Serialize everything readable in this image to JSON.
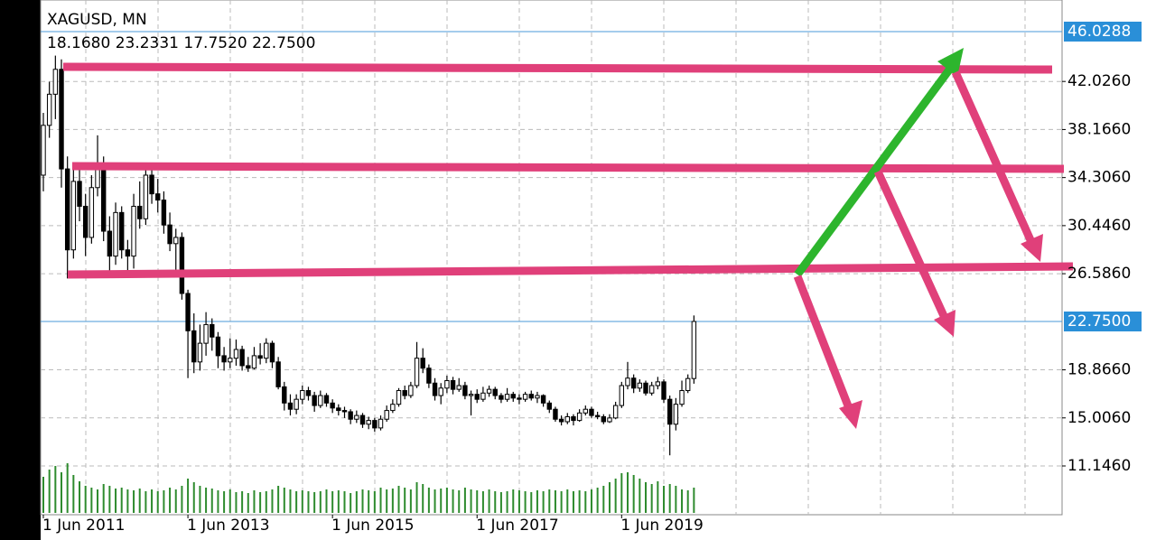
{
  "chart_data": {
    "type": "candlestick",
    "title": "XAGUSD, MN",
    "subtitle": "18.1680 23.2331 17.7520 22.7500",
    "ylim": [
      7.23,
      48.567
    ],
    "yticks": [
      {
        "value": 42.026,
        "label": "42.0260"
      },
      {
        "value": 38.166,
        "label": "38.1660"
      },
      {
        "value": 34.306,
        "label": "34.3060"
      },
      {
        "value": 30.446,
        "label": "30.4460"
      },
      {
        "value": 26.586,
        "label": "26.5860"
      },
      {
        "value": 18.866,
        "label": "18.8660"
      },
      {
        "value": 15.006,
        "label": "15.0060"
      },
      {
        "value": 11.146,
        "label": "11.1460"
      }
    ],
    "price_levels": [
      {
        "value": 46.0288,
        "label": "46.0288"
      },
      {
        "value": 22.75,
        "label": "22.7500"
      }
    ],
    "xticks": [
      {
        "value": 0,
        "label": "1 Jun 2011"
      },
      {
        "value": 24,
        "label": "1 Jun 2013"
      },
      {
        "value": 48,
        "label": "1 Jun 2015"
      },
      {
        "value": 72,
        "label": "1 Jun 2017"
      },
      {
        "value": 96,
        "label": "1 Jun 2019"
      }
    ],
    "grid": true,
    "volume_color": "#2e8b2e",
    "open": [
      34.5,
      38.5,
      41.0,
      43.0,
      35.0,
      28.5,
      34.0,
      32.0,
      29.5,
      33.5,
      35.0,
      30.0,
      28.0,
      31.5,
      28.5,
      28.0,
      32.0,
      31.0,
      34.5,
      33.0,
      32.5,
      30.5,
      29.0,
      29.5,
      25.0,
      22.0,
      19.5,
      21.0,
      22.5,
      21.5,
      20.0,
      19.5,
      19.8,
      20.5,
      19.2,
      19.0,
      20.0,
      19.8,
      21.0,
      19.5,
      17.5,
      16.2,
      15.7,
      16.5,
      17.2,
      16.8,
      16.0,
      16.8,
      16.2,
      15.8,
      15.6,
      15.5,
      14.9,
      15.2,
      14.5,
      14.8,
      14.2,
      14.9,
      15.6,
      16.1,
      17.2,
      16.8,
      17.6,
      19.8,
      19.0,
      17.8,
      16.8,
      17.4,
      18.0,
      17.3,
      17.6,
      16.8,
      16.9,
      16.5,
      17.0,
      17.3,
      16.8,
      16.5,
      16.9,
      16.6,
      16.5,
      16.9,
      16.6,
      16.8,
      16.2,
      15.7,
      14.9,
      14.7,
      15.1,
      14.8,
      15.4,
      15.7,
      15.2,
      15.1,
      14.7,
      15.0,
      16.0,
      17.6,
      18.2,
      17.4,
      17.8,
      17.0,
      17.6,
      17.9,
      16.5,
      14.5,
      16.1,
      17.2,
      18.168
    ],
    "high": [
      39.5,
      42.0,
      44.1,
      43.8,
      36.0,
      35.0,
      35.5,
      33.0,
      34.5,
      37.7,
      36.0,
      31.2,
      32.3,
      32.0,
      29.3,
      33.0,
      34.0,
      35.2,
      35.0,
      34.2,
      33.2,
      31.5,
      30.2,
      29.9,
      25.3,
      23.4,
      22.5,
      23.5,
      23.0,
      21.9,
      20.7,
      21.4,
      21.3,
      20.8,
      19.9,
      20.7,
      21.0,
      21.4,
      21.2,
      19.9,
      17.9,
      16.9,
      16.9,
      17.6,
      17.5,
      17.1,
      17.2,
      17.0,
      16.5,
      16.1,
      15.9,
      15.7,
      15.6,
      15.4,
      15.1,
      15.0,
      15.2,
      16.0,
      16.5,
      17.4,
      17.6,
      17.9,
      21.1,
      20.6,
      19.3,
      18.2,
      17.8,
      18.4,
      18.3,
      18.2,
      17.9,
      17.2,
      17.3,
      17.5,
      17.6,
      17.5,
      17.0,
      17.4,
      17.1,
      16.9,
      17.1,
      17.2,
      17.1,
      16.9,
      16.4,
      15.9,
      15.2,
      15.4,
      15.3,
      15.7,
      16.0,
      15.9,
      15.5,
      15.3,
      15.3,
      16.3,
      17.9,
      19.5,
      18.5,
      18.1,
      18.0,
      17.9,
      18.3,
      18.1,
      16.8,
      16.6,
      18.0,
      18.5,
      23.2331
    ],
    "low": [
      33.2,
      37.5,
      39.0,
      33.5,
      26.2,
      27.8,
      30.8,
      28.0,
      29.0,
      32.8,
      29.2,
      26.5,
      27.3,
      27.8,
      26.8,
      27.0,
      30.2,
      30.5,
      32.2,
      31.5,
      29.8,
      28.4,
      26.5,
      24.5,
      18.2,
      18.6,
      18.8,
      20.0,
      20.4,
      19.0,
      18.8,
      19.0,
      19.2,
      18.8,
      18.7,
      18.9,
      19.3,
      19.4,
      19.0,
      17.3,
      15.6,
      15.2,
      15.3,
      16.1,
      16.4,
      15.5,
      15.8,
      15.9,
      15.4,
      15.2,
      15.0,
      14.5,
      14.6,
      14.2,
      14.1,
      13.9,
      14.0,
      14.7,
      15.4,
      15.9,
      16.5,
      16.6,
      17.4,
      18.6,
      17.4,
      16.4,
      16.1,
      17.0,
      16.9,
      17.1,
      16.5,
      15.2,
      16.2,
      16.3,
      16.7,
      16.5,
      16.2,
      16.3,
      16.3,
      16.1,
      16.3,
      16.4,
      16.2,
      15.9,
      15.4,
      14.7,
      14.4,
      14.5,
      14.4,
      14.7,
      15.2,
      15.0,
      14.9,
      14.5,
      14.6,
      14.9,
      15.8,
      17.3,
      17.0,
      17.1,
      16.8,
      16.8,
      17.3,
      16.2,
      12.0,
      14.0,
      15.9,
      17.0,
      17.752
    ],
    "close": [
      38.5,
      41.0,
      43.0,
      35.0,
      28.5,
      34.0,
      32.0,
      29.5,
      33.5,
      35.0,
      30.0,
      28.0,
      31.5,
      28.5,
      28.0,
      32.0,
      31.0,
      34.5,
      33.0,
      32.5,
      30.5,
      29.0,
      29.5,
      25.0,
      22.0,
      19.5,
      21.0,
      22.5,
      21.5,
      20.0,
      19.5,
      19.8,
      20.5,
      19.2,
      19.0,
      20.0,
      19.8,
      21.0,
      19.5,
      17.5,
      16.2,
      15.7,
      16.5,
      17.2,
      16.8,
      16.0,
      16.8,
      16.2,
      15.8,
      15.6,
      15.5,
      14.9,
      15.2,
      14.5,
      14.8,
      14.2,
      14.9,
      15.6,
      16.1,
      17.2,
      16.8,
      17.6,
      19.8,
      19.0,
      17.8,
      16.8,
      17.4,
      18.0,
      17.3,
      17.6,
      16.8,
      16.9,
      16.5,
      17.0,
      17.3,
      16.8,
      16.5,
      16.9,
      16.6,
      16.5,
      16.9,
      16.6,
      16.8,
      16.2,
      15.7,
      14.9,
      14.7,
      15.1,
      14.8,
      15.4,
      15.7,
      15.2,
      15.1,
      14.7,
      15.0,
      16.0,
      17.6,
      18.2,
      17.4,
      17.8,
      17.0,
      17.6,
      17.9,
      16.5,
      14.5,
      16.1,
      17.2,
      18.168,
      22.75
    ],
    "volume": [
      40,
      48,
      52,
      45,
      55,
      42,
      35,
      30,
      28,
      26,
      32,
      30,
      27,
      28,
      26,
      25,
      27,
      24,
      26,
      24,
      25,
      28,
      26,
      30,
      38,
      34,
      30,
      28,
      27,
      25,
      24,
      26,
      23,
      24,
      22,
      25,
      23,
      24,
      26,
      30,
      28,
      26,
      24,
      25,
      24,
      23,
      24,
      26,
      24,
      25,
      24,
      22,
      24,
      26,
      25,
      24,
      28,
      26,
      27,
      30,
      28,
      26,
      34,
      32,
      28,
      26,
      27,
      28,
      26,
      25,
      28,
      26,
      25,
      24,
      26,
      24,
      23,
      24,
      26,
      25,
      24,
      23,
      25,
      24,
      26,
      25,
      24,
      26,
      24,
      25,
      24,
      26,
      28,
      30,
      34,
      38,
      44,
      45,
      42,
      38,
      34,
      32,
      35,
      30,
      32,
      30,
      26,
      25,
      28
    ]
  }
}
